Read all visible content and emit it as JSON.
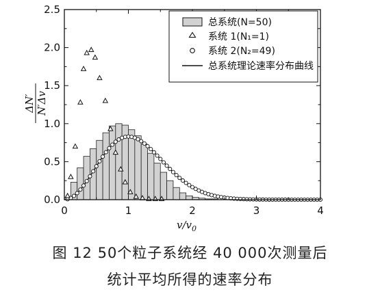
{
  "chart_data": {
    "type": "bar",
    "xlabel": "v/v",
    "xlabel_sub": "0",
    "ylabel_top": "ΔN′",
    "ylabel_bottom": "N′Δv",
    "xlim": [
      0,
      4
    ],
    "ylim": [
      0,
      2.5
    ],
    "x_ticks": [
      "0",
      "1",
      "2",
      "3",
      "4"
    ],
    "y_ticks": [
      "0.0",
      "0.5",
      "1.0",
      "1.5",
      "2.0",
      "2.5"
    ],
    "grid": false,
    "legend_position": "top-right",
    "legend": [
      {
        "kind": "bar",
        "label": "总系统(N=50)"
      },
      {
        "kind": "triangle",
        "label": "系统 1(N₁=1)"
      },
      {
        "kind": "circle",
        "label": "系统 2(N₂=49)"
      },
      {
        "kind": "line",
        "label": "总系统理论速率分布曲线"
      }
    ],
    "bar_width": 0.1,
    "bars": {
      "x_start": [
        0.0,
        0.1,
        0.2,
        0.3,
        0.4,
        0.5,
        0.6,
        0.7,
        0.8,
        0.9,
        1.0,
        1.1,
        1.2,
        1.3,
        1.4,
        1.5,
        1.6,
        1.7,
        1.8,
        1.9,
        2.0,
        2.1,
        2.2,
        2.3
      ],
      "values": [
        0.03,
        0.23,
        0.42,
        0.57,
        0.67,
        0.78,
        0.88,
        0.97,
        1.0,
        0.98,
        0.92,
        0.84,
        0.73,
        0.61,
        0.48,
        0.36,
        0.25,
        0.16,
        0.09,
        0.05,
        0.03,
        0.02,
        0.01,
        0.01
      ]
    },
    "triangles": {
      "x": [
        0.05,
        0.1,
        0.17,
        0.25,
        0.3,
        0.35,
        0.42,
        0.48,
        0.55,
        0.64,
        0.72,
        0.8,
        0.88,
        0.95,
        1.03,
        1.12,
        1.22,
        1.32,
        1.42,
        1.52
      ],
      "y": [
        0.05,
        0.3,
        0.7,
        1.28,
        1.72,
        1.93,
        1.97,
        1.87,
        1.6,
        1.3,
        0.93,
        0.62,
        0.4,
        0.23,
        0.1,
        0.04,
        0.02,
        0.01,
        0.01,
        0.01
      ]
    },
    "circles_note": "series 2 follows the theoretical curve at x = 0.05 … 4.00 (step 0.05)",
    "curve_formula": "f(x) = (4/√π)·x²·e^(−x²)"
  },
  "caption": {
    "line1": "图 12   50个粒子系统经 40 000次测量后",
    "line2": "统计平均所得的速率分布"
  }
}
